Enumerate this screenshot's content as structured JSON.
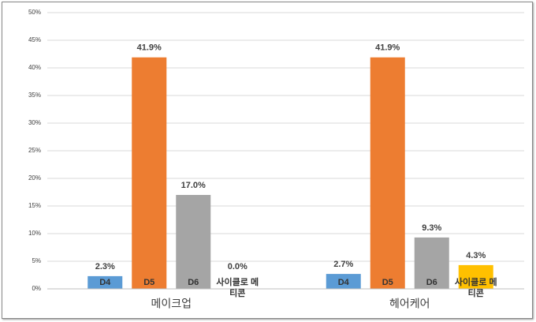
{
  "chart_data": {
    "type": "bar",
    "categories": [
      "메이크업",
      "헤어케어"
    ],
    "series": [
      {
        "name": "D4",
        "color": "#5b9bd5",
        "values": [
          2.3,
          2.7
        ],
        "value_labels": [
          "2.3%",
          "2.7%"
        ]
      },
      {
        "name": "D5",
        "color": "#ed7d31",
        "values": [
          41.9,
          41.9
        ],
        "value_labels": [
          "41.9%",
          "41.9%"
        ]
      },
      {
        "name": "D6",
        "color": "#a5a5a5",
        "values": [
          17.0,
          9.3
        ],
        "value_labels": [
          "17.0%",
          "9.3%"
        ]
      },
      {
        "name": "사이클로 메티콘",
        "color": "#ffc000",
        "values": [
          0.0,
          4.3
        ],
        "value_labels": [
          "0.0%",
          "4.3%"
        ]
      }
    ],
    "ylim": [
      0,
      50
    ],
    "yticks": [
      {
        "value": 0,
        "label": "0%"
      },
      {
        "value": 5,
        "label": "5%"
      },
      {
        "value": 10,
        "label": "10%"
      },
      {
        "value": 15,
        "label": "15%"
      },
      {
        "value": 20,
        "label": "20%"
      },
      {
        "value": 25,
        "label": "25%"
      },
      {
        "value": 30,
        "label": "30%"
      },
      {
        "value": 35,
        "label": "35%"
      },
      {
        "value": 40,
        "label": "40%"
      },
      {
        "value": 45,
        "label": "45%"
      },
      {
        "value": 50,
        "label": "50%"
      }
    ],
    "grid": true
  }
}
